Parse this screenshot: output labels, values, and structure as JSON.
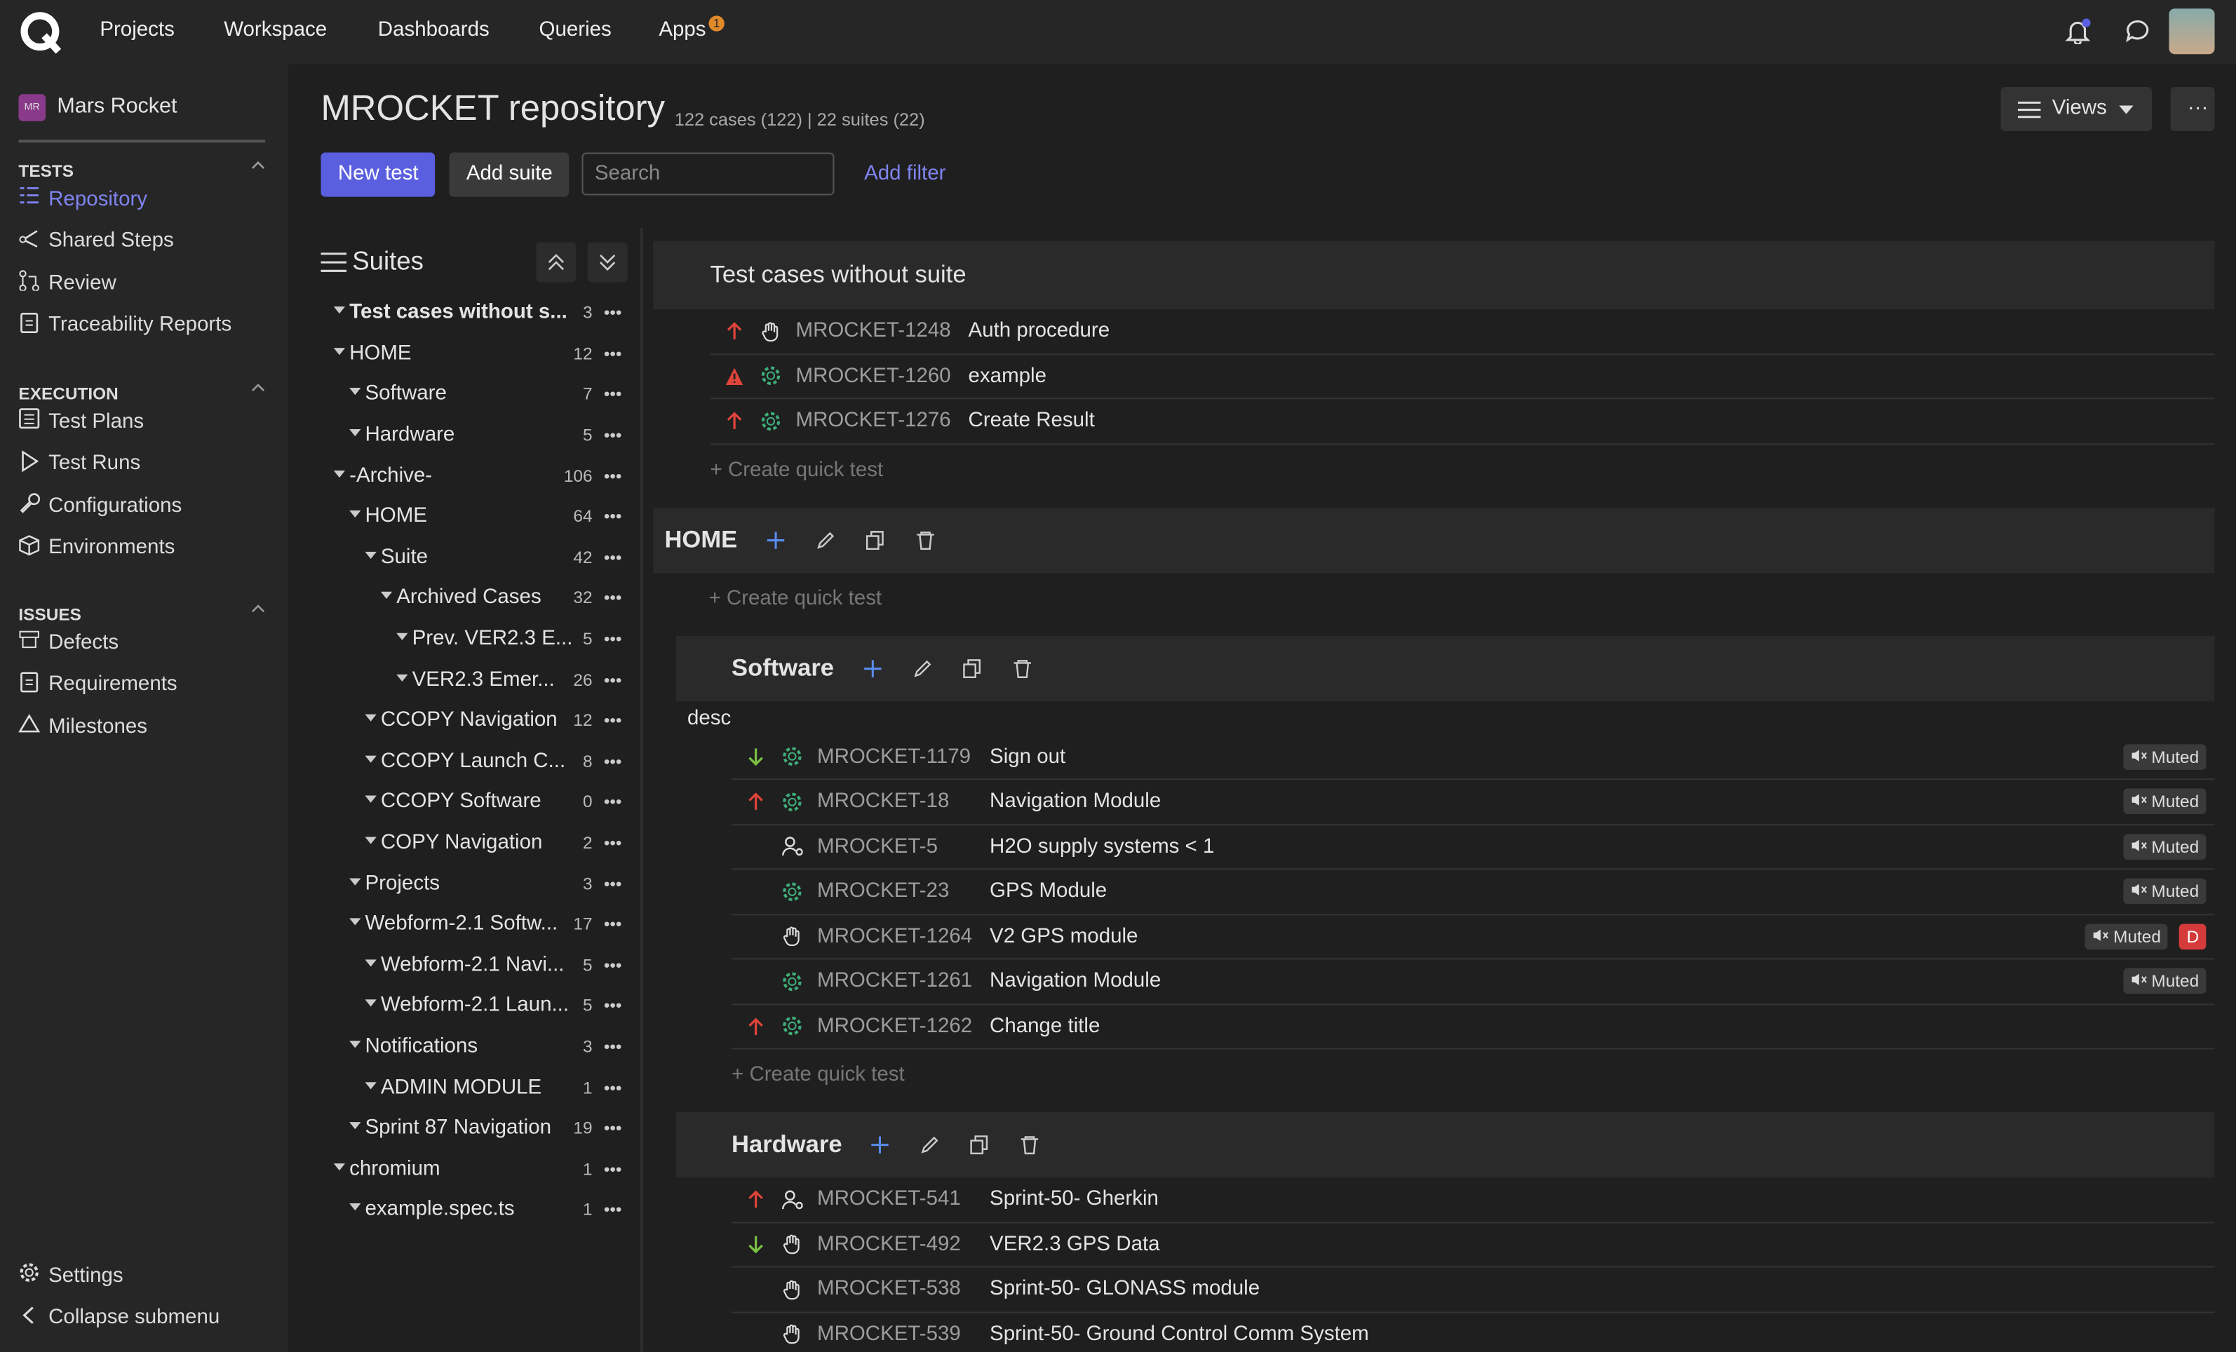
{
  "nav": {
    "items": [
      "Projects",
      "Workspace",
      "Dashboards",
      "Queries",
      "Apps"
    ],
    "apps_badge": "1"
  },
  "sidebar": {
    "project": "Mars Rocket",
    "project_initials": "MR",
    "sections": [
      {
        "title": "TESTS",
        "items": [
          {
            "label": "Repository",
            "icon": "list",
            "active": true
          },
          {
            "label": "Shared Steps",
            "icon": "share"
          },
          {
            "label": "Review",
            "icon": "pr"
          },
          {
            "label": "Traceability Reports",
            "icon": "doc"
          }
        ]
      },
      {
        "title": "EXECUTION",
        "items": [
          {
            "label": "Test Plans",
            "icon": "plan"
          },
          {
            "label": "Test Runs",
            "icon": "play"
          },
          {
            "label": "Configurations",
            "icon": "wrench"
          },
          {
            "label": "Environments",
            "icon": "box"
          }
        ]
      },
      {
        "title": "ISSUES",
        "items": [
          {
            "label": "Defects",
            "icon": "defect"
          },
          {
            "label": "Requirements",
            "icon": "doc"
          },
          {
            "label": "Milestones",
            "icon": "mountain"
          }
        ]
      }
    ],
    "footer": [
      "Settings",
      "Collapse submenu"
    ]
  },
  "header": {
    "title": "MROCKET repository",
    "stats": "122 cases (122) | 22 suites (22)",
    "views": "Views"
  },
  "toolbar": {
    "new_test": "New test",
    "add_suite": "Add suite",
    "search_placeholder": "Search",
    "add_filter": "Add filter"
  },
  "suites_panel": {
    "title": "Suites",
    "tree": [
      {
        "label": "Test cases without s...",
        "count": 3,
        "depth": 0,
        "bold": true
      },
      {
        "label": "HOME",
        "count": 12,
        "depth": 0
      },
      {
        "label": "Software",
        "count": 7,
        "depth": 1
      },
      {
        "label": "Hardware",
        "count": 5,
        "depth": 1
      },
      {
        "label": "-Archive-",
        "count": 106,
        "depth": 0
      },
      {
        "label": "HOME",
        "count": 64,
        "depth": 1
      },
      {
        "label": "Suite",
        "count": 42,
        "depth": 2
      },
      {
        "label": "Archived Cases",
        "count": 32,
        "depth": 3
      },
      {
        "label": "Prev. VER2.3 E...",
        "count": 5,
        "depth": 4
      },
      {
        "label": "VER2.3 Emer...",
        "count": 26,
        "depth": 4
      },
      {
        "label": "CCOPY Navigation",
        "count": 12,
        "depth": 2
      },
      {
        "label": "CCOPY Launch C...",
        "count": 8,
        "depth": 2
      },
      {
        "label": "CCOPY Software",
        "count": 0,
        "depth": 2
      },
      {
        "label": "COPY Navigation",
        "count": 2,
        "depth": 2
      },
      {
        "label": "Projects",
        "count": 3,
        "depth": 1
      },
      {
        "label": "Webform-2.1 Softw...",
        "count": 17,
        "depth": 1
      },
      {
        "label": "Webform-2.1 Navi...",
        "count": 5,
        "depth": 2
      },
      {
        "label": "Webform-2.1 Laun...",
        "count": 5,
        "depth": 2
      },
      {
        "label": "Notifications",
        "count": 3,
        "depth": 1
      },
      {
        "label": "ADMIN MODULE",
        "count": 1,
        "depth": 2
      },
      {
        "label": "Sprint 87 Navigation",
        "count": 19,
        "depth": 1
      },
      {
        "label": "chromium",
        "count": 1,
        "depth": 0
      },
      {
        "label": "example.spec.ts",
        "count": 1,
        "depth": 1
      }
    ]
  },
  "sections": [
    {
      "title": "Test cases without suite",
      "depth": 0,
      "tools": false,
      "cases": [
        {
          "priority": "high",
          "type": "manual",
          "id": "MROCKET-1248",
          "title": "Auth procedure",
          "badges": []
        },
        {
          "priority": "warn",
          "type": "auto",
          "id": "MROCKET-1260",
          "title": "example",
          "badges": []
        },
        {
          "priority": "high",
          "type": "auto",
          "id": "MROCKET-1276",
          "title": "Create Result",
          "badges": []
        }
      ],
      "quick": "+ Create quick test"
    },
    {
      "title": "HOME",
      "depth": 0,
      "tools": true,
      "cases": [],
      "quick": "+ Create quick test"
    },
    {
      "title": "Software",
      "depth": 1,
      "tools": true,
      "desc": "desc",
      "cases": [
        {
          "priority": "low",
          "type": "auto",
          "id": "MROCKET-1179",
          "title": "Sign out",
          "badges": [
            "Muted"
          ]
        },
        {
          "priority": "high",
          "type": "auto",
          "id": "MROCKET-18",
          "title": "Navigation Module",
          "badges": [
            "Muted"
          ]
        },
        {
          "priority": "none",
          "type": "user",
          "id": "MROCKET-5",
          "title": "H2O supply systems < 1",
          "badges": [
            "Muted"
          ]
        },
        {
          "priority": "none",
          "type": "auto",
          "id": "MROCKET-23",
          "title": "GPS Module",
          "badges": [
            "Muted"
          ]
        },
        {
          "priority": "none",
          "type": "manual",
          "id": "MROCKET-1264",
          "title": "V2 GPS module",
          "badges": [
            "Muted",
            "D"
          ]
        },
        {
          "priority": "none",
          "type": "auto",
          "id": "MROCKET-1261",
          "title": "Navigation Module",
          "badges": [
            "Muted"
          ]
        },
        {
          "priority": "high",
          "type": "auto",
          "id": "MROCKET-1262",
          "title": "Change title",
          "badges": []
        }
      ],
      "quick": "+ Create quick test"
    },
    {
      "title": "Hardware",
      "depth": 1,
      "tools": true,
      "cases": [
        {
          "priority": "high",
          "type": "user",
          "id": "MROCKET-541",
          "title": "Sprint-50- Gherkin",
          "badges": []
        },
        {
          "priority": "low",
          "type": "manual",
          "id": "MROCKET-492",
          "title": "VER2.3 GPS Data",
          "badges": []
        },
        {
          "priority": "none",
          "type": "manual",
          "id": "MROCKET-538",
          "title": "Sprint-50- GLONASS module",
          "badges": []
        },
        {
          "priority": "none",
          "type": "manual",
          "id": "MROCKET-539",
          "title": "Sprint-50- Ground Control Comm System",
          "badges": []
        }
      ]
    }
  ]
}
